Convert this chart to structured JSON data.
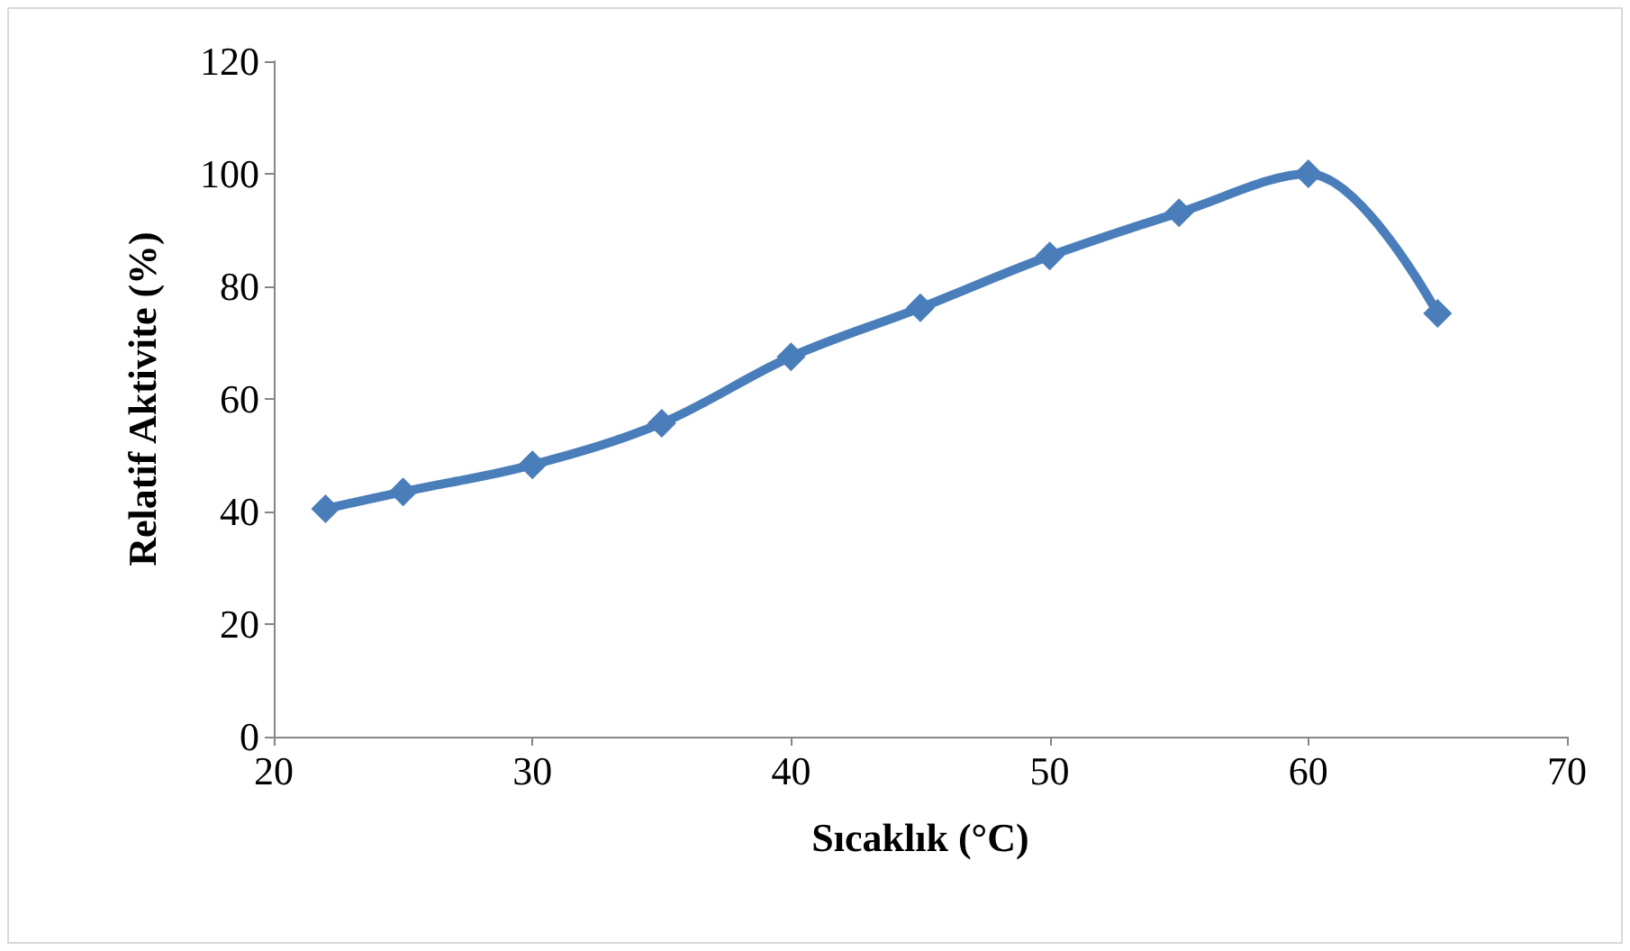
{
  "chart_data": {
    "type": "line",
    "xlabel": "Sıcaklık (°C)",
    "ylabel": "Relatif Aktivite (%)",
    "x": [
      22,
      25,
      30,
      35,
      40,
      45,
      50,
      55,
      60,
      65
    ],
    "series": [
      {
        "color": "#4a7ebb",
        "values": [
          40.5,
          43.5,
          48.3,
          55.7,
          67.5,
          76.2,
          85.4,
          93.1,
          100,
          75.2
        ]
      }
    ],
    "xlim": [
      20,
      70
    ],
    "xticks": [
      20,
      30,
      40,
      50,
      60,
      70
    ],
    "ylim": [
      0,
      120
    ],
    "yticks": [
      0,
      20,
      40,
      60,
      80,
      100,
      120
    ],
    "grid": false,
    "marker": "diamond",
    "line_style": "solid"
  }
}
